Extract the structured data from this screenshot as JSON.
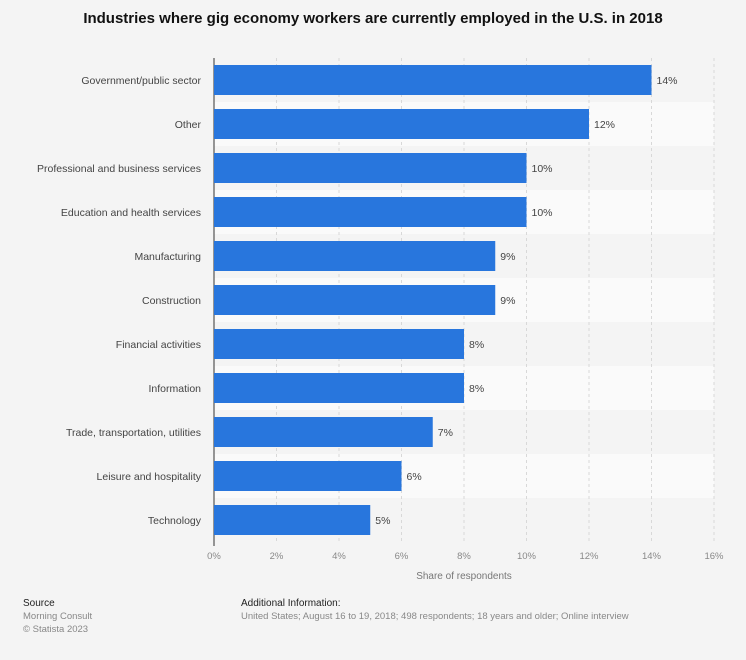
{
  "chart_data": {
    "type": "bar",
    "orientation": "horizontal",
    "title": "Industries where gig economy workers are currently employed in the U.S. in 2018",
    "categories": [
      "Government/public sector",
      "Other",
      "Professional and business services",
      "Education and health services",
      "Manufacturing",
      "Construction",
      "Financial activities",
      "Information",
      "Trade, transportation, utilities",
      "Leisure and hospitality",
      "Technology"
    ],
    "values": [
      14,
      12,
      10,
      10,
      9,
      9,
      8,
      8,
      7,
      6,
      5
    ],
    "data_labels": [
      "14%",
      "12%",
      "10%",
      "10%",
      "9%",
      "9%",
      "8%",
      "8%",
      "7%",
      "6%",
      "5%"
    ],
    "xlabel": "Share of respondents",
    "ylabel": "",
    "xlim": [
      0,
      16
    ],
    "xticks": [
      "0%",
      "2%",
      "4%",
      "6%",
      "8%",
      "10%",
      "12%",
      "14%",
      "16%"
    ],
    "grid": true,
    "bar_color": "#2876dd"
  },
  "footer": {
    "source_heading": "Source",
    "source": "Morning Consult",
    "copyright": "© Statista 2023",
    "info_heading": "Additional Information:",
    "info": "United States; August 16 to 19, 2018; 498 respondents; 18 years and older; Online interview"
  }
}
